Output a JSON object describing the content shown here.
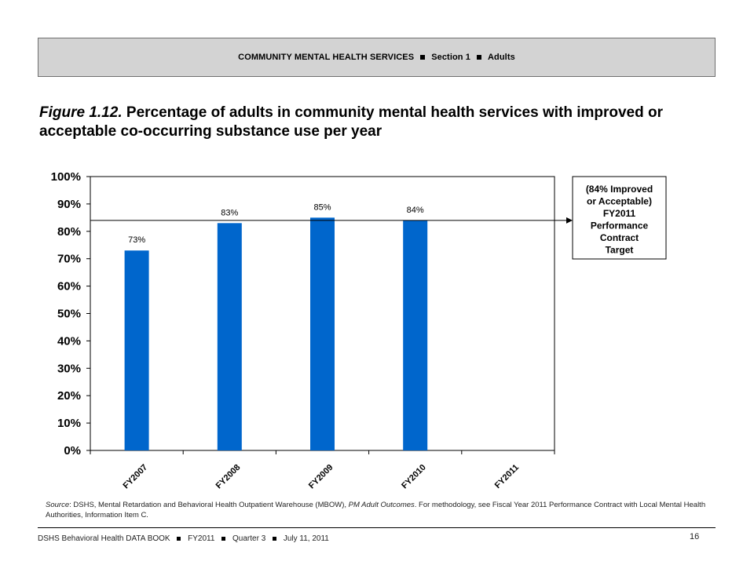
{
  "header": {
    "section": "COMMUNITY MENTAL HEALTH SERVICES",
    "part": "Section 1",
    "group": "Adults"
  },
  "figure": {
    "number": "Figure 1.12.",
    "title": "Percentage of adults in community mental health services with improved or acceptable co-occurring substance use per year"
  },
  "chart_data": {
    "type": "bar",
    "categories": [
      "FY2007",
      "FY2008",
      "FY2009",
      "FY2010",
      "FY2011"
    ],
    "values": [
      73,
      83,
      85,
      84,
      null
    ],
    "data_labels": [
      "73%",
      "83%",
      "85%",
      "84%",
      ""
    ],
    "title": "",
    "xlabel": "",
    "ylabel": "",
    "ylim": [
      0,
      100
    ],
    "yticks": [
      "0%",
      "10%",
      "20%",
      "30%",
      "40%",
      "50%",
      "60%",
      "70%",
      "80%",
      "90%",
      "100%"
    ],
    "grid": false,
    "legend": "none",
    "bar_color": "#0066cc",
    "target": {
      "value": 84,
      "label_lines": [
        "(84% Improved",
        "or Acceptable)",
        "FY2011",
        "Performance",
        "Contract",
        "Target"
      ]
    }
  },
  "source": {
    "label": "Source",
    "text": ": DSHS, Mental Retardation and Behavioral Health Outpatient Warehouse (MBOW), ",
    "italic": "PM Adult Outcomes",
    "text2": ". For methodology, see Fiscal Year 2011 Performance Contract with Local Mental Health Authorities, Information Item C."
  },
  "footer": {
    "book": "DSHS Behavioral Health DATA BOOK",
    "fy": "FY2011",
    "quarter": "Quarter 3",
    "date": "July 11, 2011",
    "page": "16"
  }
}
